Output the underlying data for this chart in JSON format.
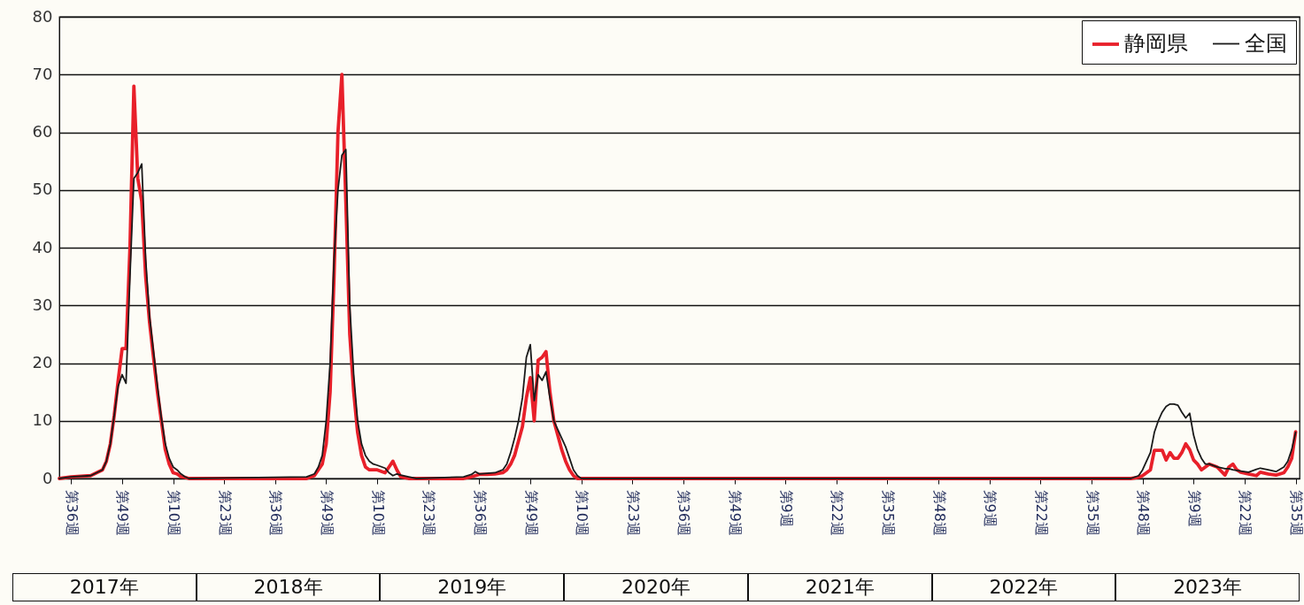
{
  "chart_data": {
    "type": "line",
    "x": [
      "2017-08-14",
      "2017-09-04",
      "2017-10-09",
      "2017-10-30",
      "2017-11-06",
      "2017-11-13",
      "2017-11-20",
      "2017-11-27",
      "2017-12-04",
      "2017-12-11",
      "2017-12-18",
      "2017-12-25",
      "2018-01-01",
      "2018-01-08",
      "2018-01-15",
      "2018-01-22",
      "2018-01-29",
      "2018-02-05",
      "2018-02-12",
      "2018-02-19",
      "2018-02-26",
      "2018-03-05",
      "2018-03-12",
      "2018-03-19",
      "2018-03-26",
      "2018-04-02",
      "2018-10-29",
      "2018-11-12",
      "2018-11-19",
      "2018-11-26",
      "2018-12-03",
      "2018-12-10",
      "2018-12-17",
      "2018-12-24",
      "2018-12-31",
      "2019-01-07",
      "2019-01-14",
      "2019-01-21",
      "2019-01-28",
      "2019-02-04",
      "2019-02-11",
      "2019-02-18",
      "2019-02-25",
      "2019-03-04",
      "2019-03-18",
      "2019-03-25",
      "2019-04-01",
      "2019-04-08",
      "2019-04-15",
      "2019-04-29",
      "2019-05-13",
      "2019-08-05",
      "2019-08-19",
      "2019-08-26",
      "2019-09-02",
      "2019-09-16",
      "2019-09-30",
      "2019-10-14",
      "2019-10-21",
      "2019-10-28",
      "2019-11-04",
      "2019-11-11",
      "2019-11-18",
      "2019-11-25",
      "2019-12-02",
      "2019-12-09",
      "2019-12-16",
      "2019-12-23",
      "2019-12-30",
      "2020-01-06",
      "2020-01-13",
      "2020-01-20",
      "2020-01-27",
      "2020-02-03",
      "2020-02-10",
      "2020-02-17",
      "2020-02-24",
      "2020-03-02",
      "2022-11-07",
      "2022-11-21",
      "2022-11-28",
      "2022-12-05",
      "2022-12-12",
      "2022-12-19",
      "2022-12-26",
      "2023-01-02",
      "2023-01-09",
      "2023-01-16",
      "2023-01-23",
      "2023-01-30",
      "2023-02-06",
      "2023-02-13",
      "2023-02-20",
      "2023-02-27",
      "2023-03-06",
      "2023-03-13",
      "2023-03-20",
      "2023-03-27",
      "2023-04-10",
      "2023-04-24",
      "2023-05-01",
      "2023-05-08",
      "2023-05-15",
      "2023-05-22",
      "2023-06-05",
      "2023-06-19",
      "2023-06-26",
      "2023-07-10",
      "2023-07-24",
      "2023-08-07",
      "2023-08-14",
      "2023-08-21",
      "2023-08-28"
    ],
    "series": [
      {
        "name": "静岡県",
        "color": "#e8202a",
        "values": [
          0,
          0.3,
          0.5,
          1.5,
          3,
          6,
          11,
          17,
          22.5,
          22.5,
          40,
          68,
          52,
          48,
          35,
          27,
          21,
          15,
          10,
          5,
          2.5,
          1,
          0.8,
          0.3,
          0.2,
          0,
          0,
          0.5,
          1.5,
          2.5,
          6,
          15,
          35,
          60,
          70,
          48,
          25,
          15,
          8,
          4,
          2,
          1.5,
          1.5,
          1.5,
          1,
          2,
          3,
          1.5,
          0.3,
          0,
          0,
          0,
          0.3,
          0.5,
          0.7,
          0.7,
          0.8,
          1,
          1.5,
          2.5,
          4,
          6.5,
          9,
          14,
          17.5,
          10,
          20.5,
          21,
          22,
          15,
          10,
          7.5,
          5,
          3,
          1.5,
          0.5,
          0,
          0,
          0,
          0.2,
          0.5,
          1,
          1.5,
          4.9,
          4.9,
          4.9,
          3.2,
          4.5,
          3.5,
          3.5,
          4.5,
          6,
          5,
          3.2,
          2.5,
          1.5,
          2,
          2.5,
          2,
          0.6,
          2,
          2.5,
          1.5,
          1.1,
          0.8,
          0.5,
          1.1,
          0.8,
          0.6,
          1,
          2,
          3.5,
          8.1
        ]
      },
      {
        "name": "全国",
        "color": "#1a1a1a",
        "values": [
          0,
          0.3,
          0.5,
          1.5,
          3,
          6,
          11,
          16,
          18,
          16.5,
          35,
          52,
          53,
          54.5,
          38,
          28,
          22,
          16,
          10.5,
          6,
          3.5,
          2,
          1.5,
          0.8,
          0.3,
          0,
          0.3,
          0.8,
          2,
          4,
          10,
          20,
          38,
          50,
          56,
          57,
          30,
          18,
          10,
          6,
          4,
          3,
          2.5,
          2.3,
          1.8,
          1,
          0.5,
          0.8,
          0.6,
          0.3,
          0,
          0.3,
          0.7,
          1.2,
          0.8,
          0.9,
          1,
          1.5,
          2.5,
          4.5,
          7,
          10,
          14,
          21,
          23.2,
          13.5,
          18,
          17,
          18.5,
          14,
          10,
          8.5,
          7,
          5.5,
          3.5,
          1.5,
          0.5,
          0,
          0,
          0.5,
          1.5,
          3,
          4.5,
          8,
          10,
          11.5,
          12.5,
          12.9,
          12.9,
          12.7,
          11.5,
          10.5,
          11.3,
          7.5,
          5,
          3.5,
          2.5,
          2.5,
          2,
          1.7,
          1.7,
          1.5,
          1.4,
          1.3,
          1.1,
          1.6,
          1.8,
          1.5,
          1.2,
          2,
          3,
          5,
          8
        ]
      }
    ],
    "xlim": [
      "2017-08-14",
      "2023-09-04"
    ],
    "xticks": [
      {
        "value": "2017-09-04",
        "label": "第36週"
      },
      {
        "value": "2017-12-04",
        "label": "第49週"
      },
      {
        "value": "2018-03-05",
        "label": "第10週"
      },
      {
        "value": "2018-06-04",
        "label": "第23週"
      },
      {
        "value": "2018-09-03",
        "label": "第36週"
      },
      {
        "value": "2018-12-03",
        "label": "第49週"
      },
      {
        "value": "2019-03-04",
        "label": "第10週"
      },
      {
        "value": "2019-06-03",
        "label": "第23週"
      },
      {
        "value": "2019-09-02",
        "label": "第36週"
      },
      {
        "value": "2019-12-02",
        "label": "第49週"
      },
      {
        "value": "2020-03-02",
        "label": "第10週"
      },
      {
        "value": "2020-06-01",
        "label": "第23週"
      },
      {
        "value": "2020-08-31",
        "label": "第36週"
      },
      {
        "value": "2020-11-30",
        "label": "第49週"
      },
      {
        "value": "2021-03-01",
        "label": "第9週"
      },
      {
        "value": "2021-05-31",
        "label": "第22週"
      },
      {
        "value": "2021-08-30",
        "label": "第35週"
      },
      {
        "value": "2021-11-29",
        "label": "第48週"
      },
      {
        "value": "2022-02-28",
        "label": "第9週"
      },
      {
        "value": "2022-05-30",
        "label": "第22週"
      },
      {
        "value": "2022-08-29",
        "label": "第35週"
      },
      {
        "value": "2022-11-28",
        "label": "第48週"
      },
      {
        "value": "2023-02-27",
        "label": "第9週"
      },
      {
        "value": "2023-05-29",
        "label": "第22週"
      },
      {
        "value": "2023-08-28",
        "label": "第35週"
      }
    ],
    "ylim": [
      0,
      80
    ],
    "yticks": [
      0,
      10,
      20,
      30,
      40,
      50,
      60,
      70,
      80
    ],
    "grid": "y",
    "legend": "top right",
    "annotations": [
      "2017年",
      "2018年",
      "2019年",
      "2020年",
      "2021年",
      "2022年",
      "2023年"
    ]
  }
}
